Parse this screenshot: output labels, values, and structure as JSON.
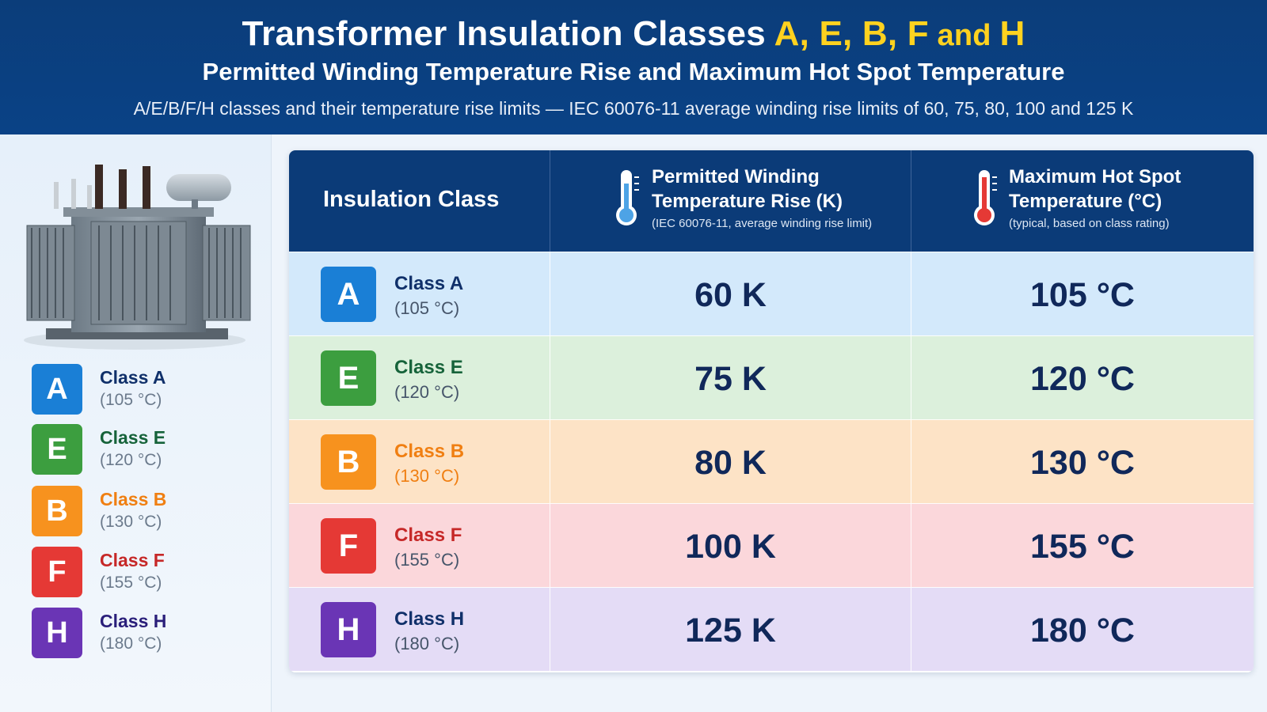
{
  "header": {
    "title_prefix": "Transformer Insulation Classes ",
    "title_highlight": "A, E, B, F",
    "title_and": " and ",
    "title_last": "H",
    "subtitle": "Permitted Winding Temperature Rise and Maximum Hot Spot Temperature",
    "subline": "A/E/B/F/H classes and their temperature rise limits — IEC 60076-11 average winding rise limits of 60, 75, 80, 100 and 125 K"
  },
  "legend": [
    {
      "letter": "A",
      "name": "Class A",
      "temp": "(105 °C)",
      "color": "#1a7fd6",
      "name_color": "#10306a"
    },
    {
      "letter": "E",
      "name": "Class E",
      "temp": "(120 °C)",
      "color": "#3c9e3f",
      "name_color": "#16633a"
    },
    {
      "letter": "B",
      "name": "Class B",
      "temp": "(130 °C)",
      "color": "#f7921e",
      "name_color": "#f07f12"
    },
    {
      "letter": "F",
      "name": "Class F",
      "temp": "(155 °C)",
      "color": "#e53935",
      "name_color": "#c62828"
    },
    {
      "letter": "H",
      "name": "Class H",
      "temp": "(180 °C)",
      "color": "#6a35b5",
      "name_color": "#2a1f7a"
    }
  ],
  "table": {
    "col_class": "Insulation Class",
    "col_rise_title_1": "Permitted Winding",
    "col_rise_title_2": "Temperature Rise (K)",
    "col_rise_note": "(IEC 60076-11, average winding rise limit)",
    "col_hot_title_1": "Maximum Hot Spot",
    "col_hot_title_2": "Temperature (°C)",
    "col_hot_note": "(typical, based on class rating)",
    "rows": [
      {
        "letter": "A",
        "name": "Class A",
        "temp": "(105 °C)",
        "rise": "60 K",
        "hot": "105 °C",
        "badge_color": "#1a7fd6",
        "name_color": "#10306a",
        "bg": "#d3e9fb"
      },
      {
        "letter": "E",
        "name": "Class E",
        "temp": "(120 °C)",
        "rise": "75 K",
        "hot": "120 °C",
        "badge_color": "#3c9e3f",
        "name_color": "#16633a",
        "bg": "#dcf0dc"
      },
      {
        "letter": "B",
        "name": "Class B",
        "temp": "(130 °C)",
        "rise": "80 K",
        "hot": "130 °C",
        "badge_color": "#f7921e",
        "name_color": "#f07f12",
        "bg": "#fde3c6"
      },
      {
        "letter": "F",
        "name": "Class F",
        "temp": "(155 °C)",
        "rise": "100 K",
        "hot": "155 °C",
        "badge_color": "#e53935",
        "name_color": "#c62828",
        "bg": "#fbd7db"
      },
      {
        "letter": "H",
        "name": "Class H",
        "temp": "(180 °C)",
        "rise": "125 K",
        "hot": "180 °C",
        "badge_color": "#6a35b5",
        "name_color": "#10306a",
        "bg": "#e4dcf6"
      }
    ]
  },
  "colors": {
    "header_bg": "#0b3d7a",
    "highlight": "#ffd21f",
    "thermo_blue": "#4da3e6",
    "thermo_red": "#e53935"
  },
  "icons": {
    "transformer": "transformer-image",
    "rise": "thermometer-blue-icon",
    "hot": "thermometer-red-icon"
  }
}
